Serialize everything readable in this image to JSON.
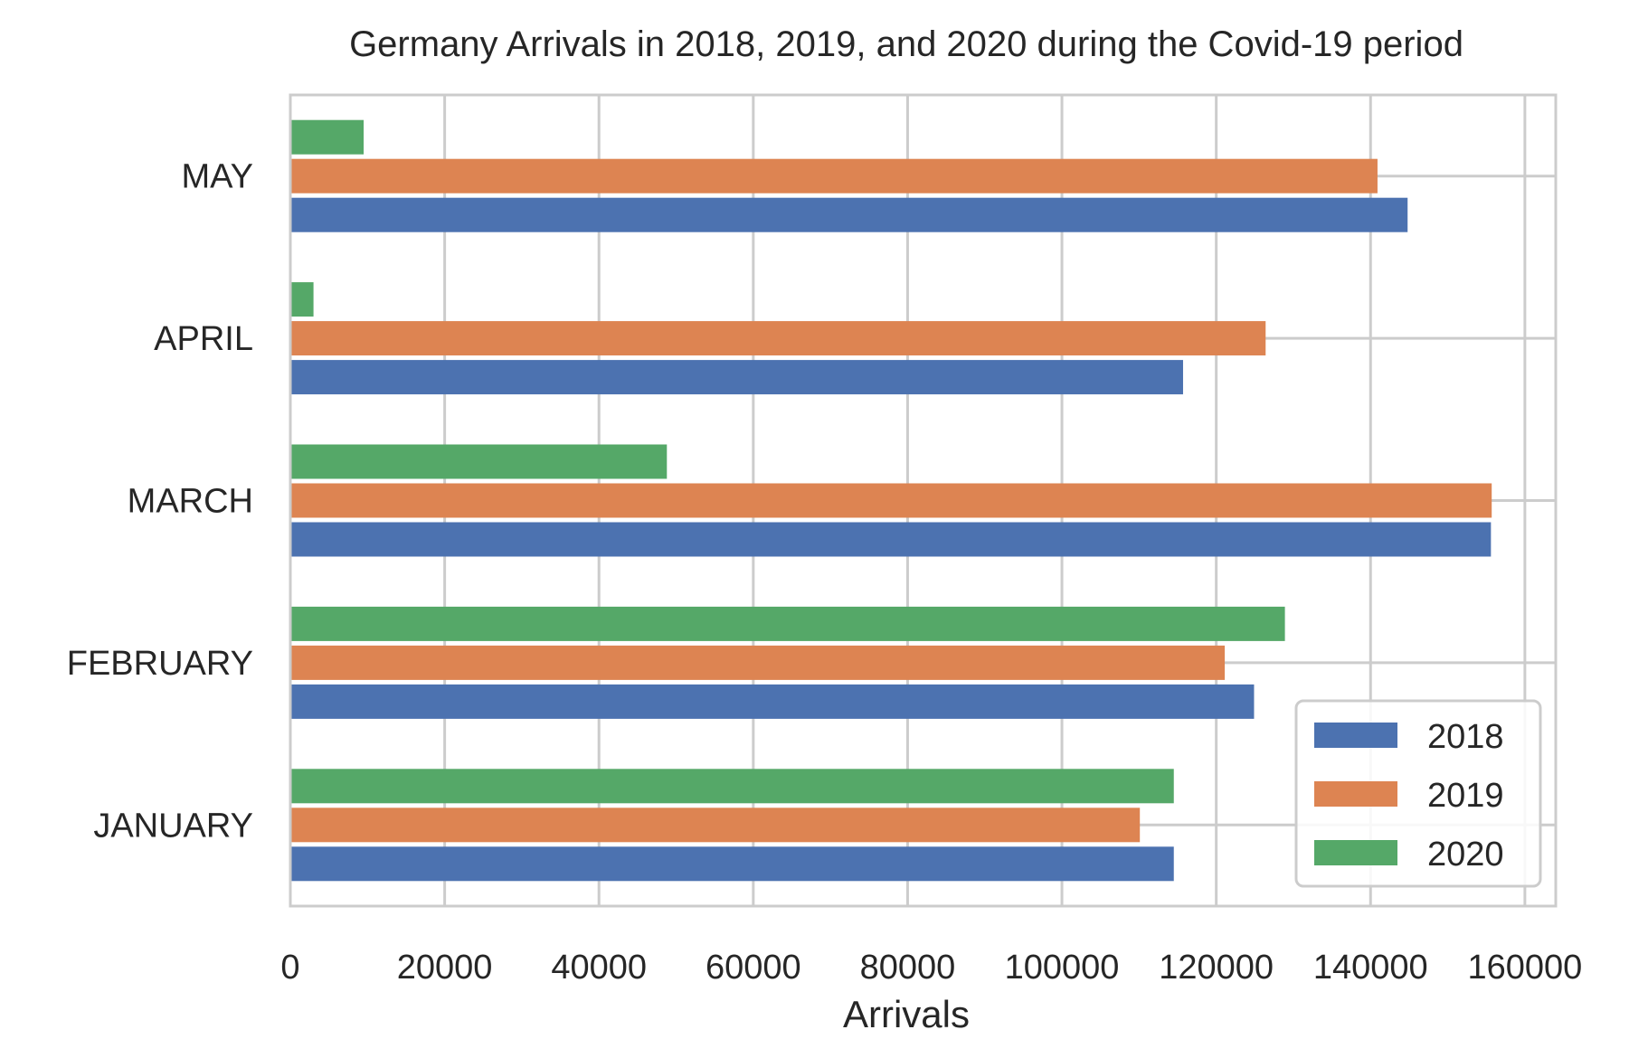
{
  "chart_data": {
    "type": "bar",
    "orientation": "horizontal",
    "title": "Germany Arrivals in 2018, 2019, and 2020 during the Covid-19 period",
    "xlabel": "Arrivals",
    "ylabel": "",
    "xlim": [
      0,
      164000
    ],
    "xticks": [
      "0",
      "20000",
      "40000",
      "60000",
      "80000",
      "100000",
      "120000",
      "140000",
      "160000"
    ],
    "categories": [
      "JANUARY",
      "FEBRUARY",
      "MARCH",
      "APRIL",
      "MAY"
    ],
    "series": [
      {
        "name": "2018",
        "color": "#4c72b0",
        "values": [
          114500,
          124900,
          155600,
          115700,
          144800
        ]
      },
      {
        "name": "2019",
        "color": "#dd8452",
        "values": [
          110100,
          121100,
          155700,
          126400,
          140900
        ]
      },
      {
        "name": "2020",
        "color": "#55a868",
        "values": [
          114500,
          128900,
          48800,
          3000,
          9500
        ]
      }
    ],
    "grid": true,
    "legend": "lower-right"
  }
}
